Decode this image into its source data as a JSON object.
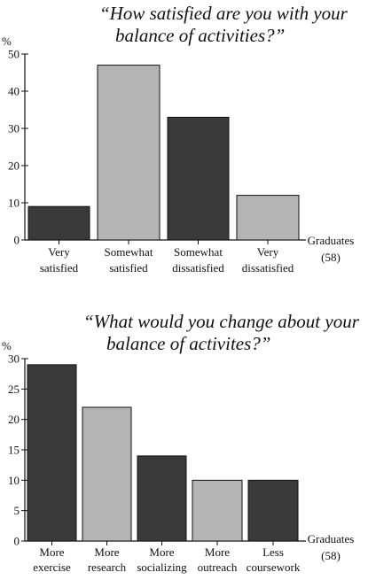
{
  "colors": {
    "dark": "#3a3a3a",
    "light": "#b4b4b4",
    "axis": "#111111"
  },
  "chart_data": [
    {
      "type": "bar",
      "title_lines": [
        "“How satisfied are you with your",
        "balance of activities?”"
      ],
      "ylabel": "%",
      "ylim": [
        0,
        50
      ],
      "yticks": [
        0,
        10,
        20,
        30,
        40,
        50
      ],
      "categories": [
        [
          "Very",
          "satisfied"
        ],
        [
          "Somewhat",
          "satisfied"
        ],
        [
          "Somewhat",
          "dissatisfied"
        ],
        [
          "Very",
          "dissatisfied"
        ]
      ],
      "values": [
        9,
        47,
        33,
        12
      ],
      "bar_colors": [
        "dark",
        "light",
        "dark",
        "light"
      ],
      "group_label": [
        "Graduates",
        "(58)"
      ],
      "grid": false,
      "legend": "none"
    },
    {
      "type": "bar",
      "title_lines": [
        "“What would you change about your",
        "balance of activites?”"
      ],
      "ylabel": "%",
      "ylim": [
        0,
        30
      ],
      "yticks": [
        0,
        5,
        10,
        15,
        20,
        25,
        30
      ],
      "categories": [
        [
          "More",
          "exercise"
        ],
        [
          "More",
          "research"
        ],
        [
          "More",
          "socializing"
        ],
        [
          "More",
          "outreach"
        ],
        [
          "Less",
          "coursework"
        ]
      ],
      "values": [
        29,
        22,
        14,
        10,
        10
      ],
      "bar_colors": [
        "dark",
        "light",
        "dark",
        "light",
        "dark"
      ],
      "group_label": [
        "Graduates",
        "(58)"
      ],
      "grid": false,
      "legend": "none"
    }
  ]
}
